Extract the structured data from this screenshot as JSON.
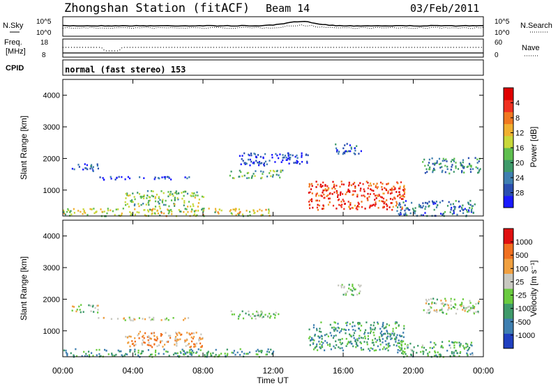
{
  "header": {
    "station": "Zhongshan Station (fitACF)",
    "beam": "Beam 14",
    "date": "03/Feb/2011"
  },
  "top_panels": {
    "nsky_label": "N.Sky",
    "nsearch_label": "N.Search",
    "nsky_ticks": [
      "10^5",
      "10^0"
    ],
    "nsearch_ticks": [
      "10^5",
      "10^0"
    ],
    "freq_label_1": "Freq.",
    "freq_label_2": "[MHz]",
    "freq_ticks": [
      "18",
      "8"
    ],
    "nave_label": "Nave",
    "nave_ticks": [
      "60",
      "0"
    ],
    "cpid_label": "CPID",
    "cpid_text": "normal (fast stereo) 153"
  },
  "chart_data": [
    {
      "type": "heatmap",
      "name": "power",
      "ylabel": "Slant Range [km]",
      "xlabel": "",
      "ylim": [
        180,
        4500
      ],
      "yticks": [
        "1000",
        "2000",
        "3000",
        "4000"
      ],
      "colorbar_label": "Power [dB]",
      "colorbar_ticks": [
        "4",
        "8",
        "12",
        "16",
        "20",
        "24",
        "28"
      ],
      "colorbar_colors": [
        "#1a1aff",
        "#2b4fb0",
        "#3f7fb0",
        "#3f9a6a",
        "#5fbf4f",
        "#c8d83a",
        "#f0b030",
        "#f07820",
        "#f03020",
        "#e00000"
      ],
      "bands": [
        {
          "t0": 0.5,
          "t1": 2.0,
          "r0": 1600,
          "r1": 1850,
          "level": 0.15
        },
        {
          "t0": 2.0,
          "t1": 7.5,
          "r0": 1350,
          "r1": 1450,
          "level": 0.1
        },
        {
          "t0": 3.5,
          "t1": 8.0,
          "r0": 500,
          "r1": 1000,
          "level": 0.45
        },
        {
          "t0": 0.0,
          "t1": 12.0,
          "r0": 200,
          "r1": 450,
          "level": 0.55
        },
        {
          "t0": 9.5,
          "t1": 12.5,
          "r0": 1400,
          "r1": 1650,
          "level": 0.4
        },
        {
          "t0": 10.0,
          "t1": 14.0,
          "r0": 1800,
          "r1": 2200,
          "level": 0.12
        },
        {
          "t0": 14.0,
          "t1": 19.5,
          "r0": 400,
          "r1": 1300,
          "level": 0.85
        },
        {
          "t0": 15.5,
          "t1": 17.0,
          "r0": 2150,
          "r1": 2500,
          "level": 0.2
        },
        {
          "t0": 20.5,
          "t1": 23.8,
          "r0": 1550,
          "r1": 2050,
          "level": 0.3
        },
        {
          "t0": 19.0,
          "t1": 23.5,
          "r0": 200,
          "r1": 700,
          "level": 0.25
        }
      ]
    },
    {
      "type": "heatmap",
      "name": "velocity",
      "ylabel": "Slant Range [km]",
      "xlabel": "Time UT",
      "ylim": [
        180,
        4500
      ],
      "yticks": [
        "1000",
        "2000",
        "3000",
        "4000"
      ],
      "xticks": [
        "00:00",
        "04:00",
        "08:00",
        "12:00",
        "16:00",
        "20:00",
        "00:00"
      ],
      "colorbar_label": "Velocity [m s⁻¹]",
      "colorbar_ticks": [
        "1000",
        "500",
        "100",
        "25",
        "-25",
        "-100",
        "-500",
        "-1000"
      ],
      "colorbar_colors": [
        "#2040c0",
        "#3f7fb0",
        "#3f9a6a",
        "#6acb40",
        "#c8c8c0",
        "#f0a040",
        "#f07020",
        "#e01010"
      ],
      "bands": [
        {
          "t0": 0.5,
          "t1": 2.0,
          "r0": 1600,
          "r1": 1850,
          "level": 0.5
        },
        {
          "t0": 2.0,
          "t1": 7.5,
          "r0": 1350,
          "r1": 1450,
          "level": 0.55
        },
        {
          "t0": 3.5,
          "t1": 8.0,
          "r0": 500,
          "r1": 1000,
          "level": 0.7
        },
        {
          "t0": 0.0,
          "t1": 12.0,
          "r0": 200,
          "r1": 450,
          "level": 0.3
        },
        {
          "t0": 9.5,
          "t1": 12.5,
          "r0": 1400,
          "r1": 1650,
          "level": 0.45
        },
        {
          "t0": 14.0,
          "t1": 19.5,
          "r0": 400,
          "r1": 1300,
          "level": 0.3
        },
        {
          "t0": 15.5,
          "t1": 17.0,
          "r0": 2150,
          "r1": 2500,
          "level": 0.45
        },
        {
          "t0": 20.5,
          "t1": 23.8,
          "r0": 1550,
          "r1": 2050,
          "level": 0.5
        },
        {
          "t0": 19.0,
          "t1": 23.5,
          "r0": 200,
          "r1": 700,
          "level": 0.35
        }
      ]
    }
  ]
}
